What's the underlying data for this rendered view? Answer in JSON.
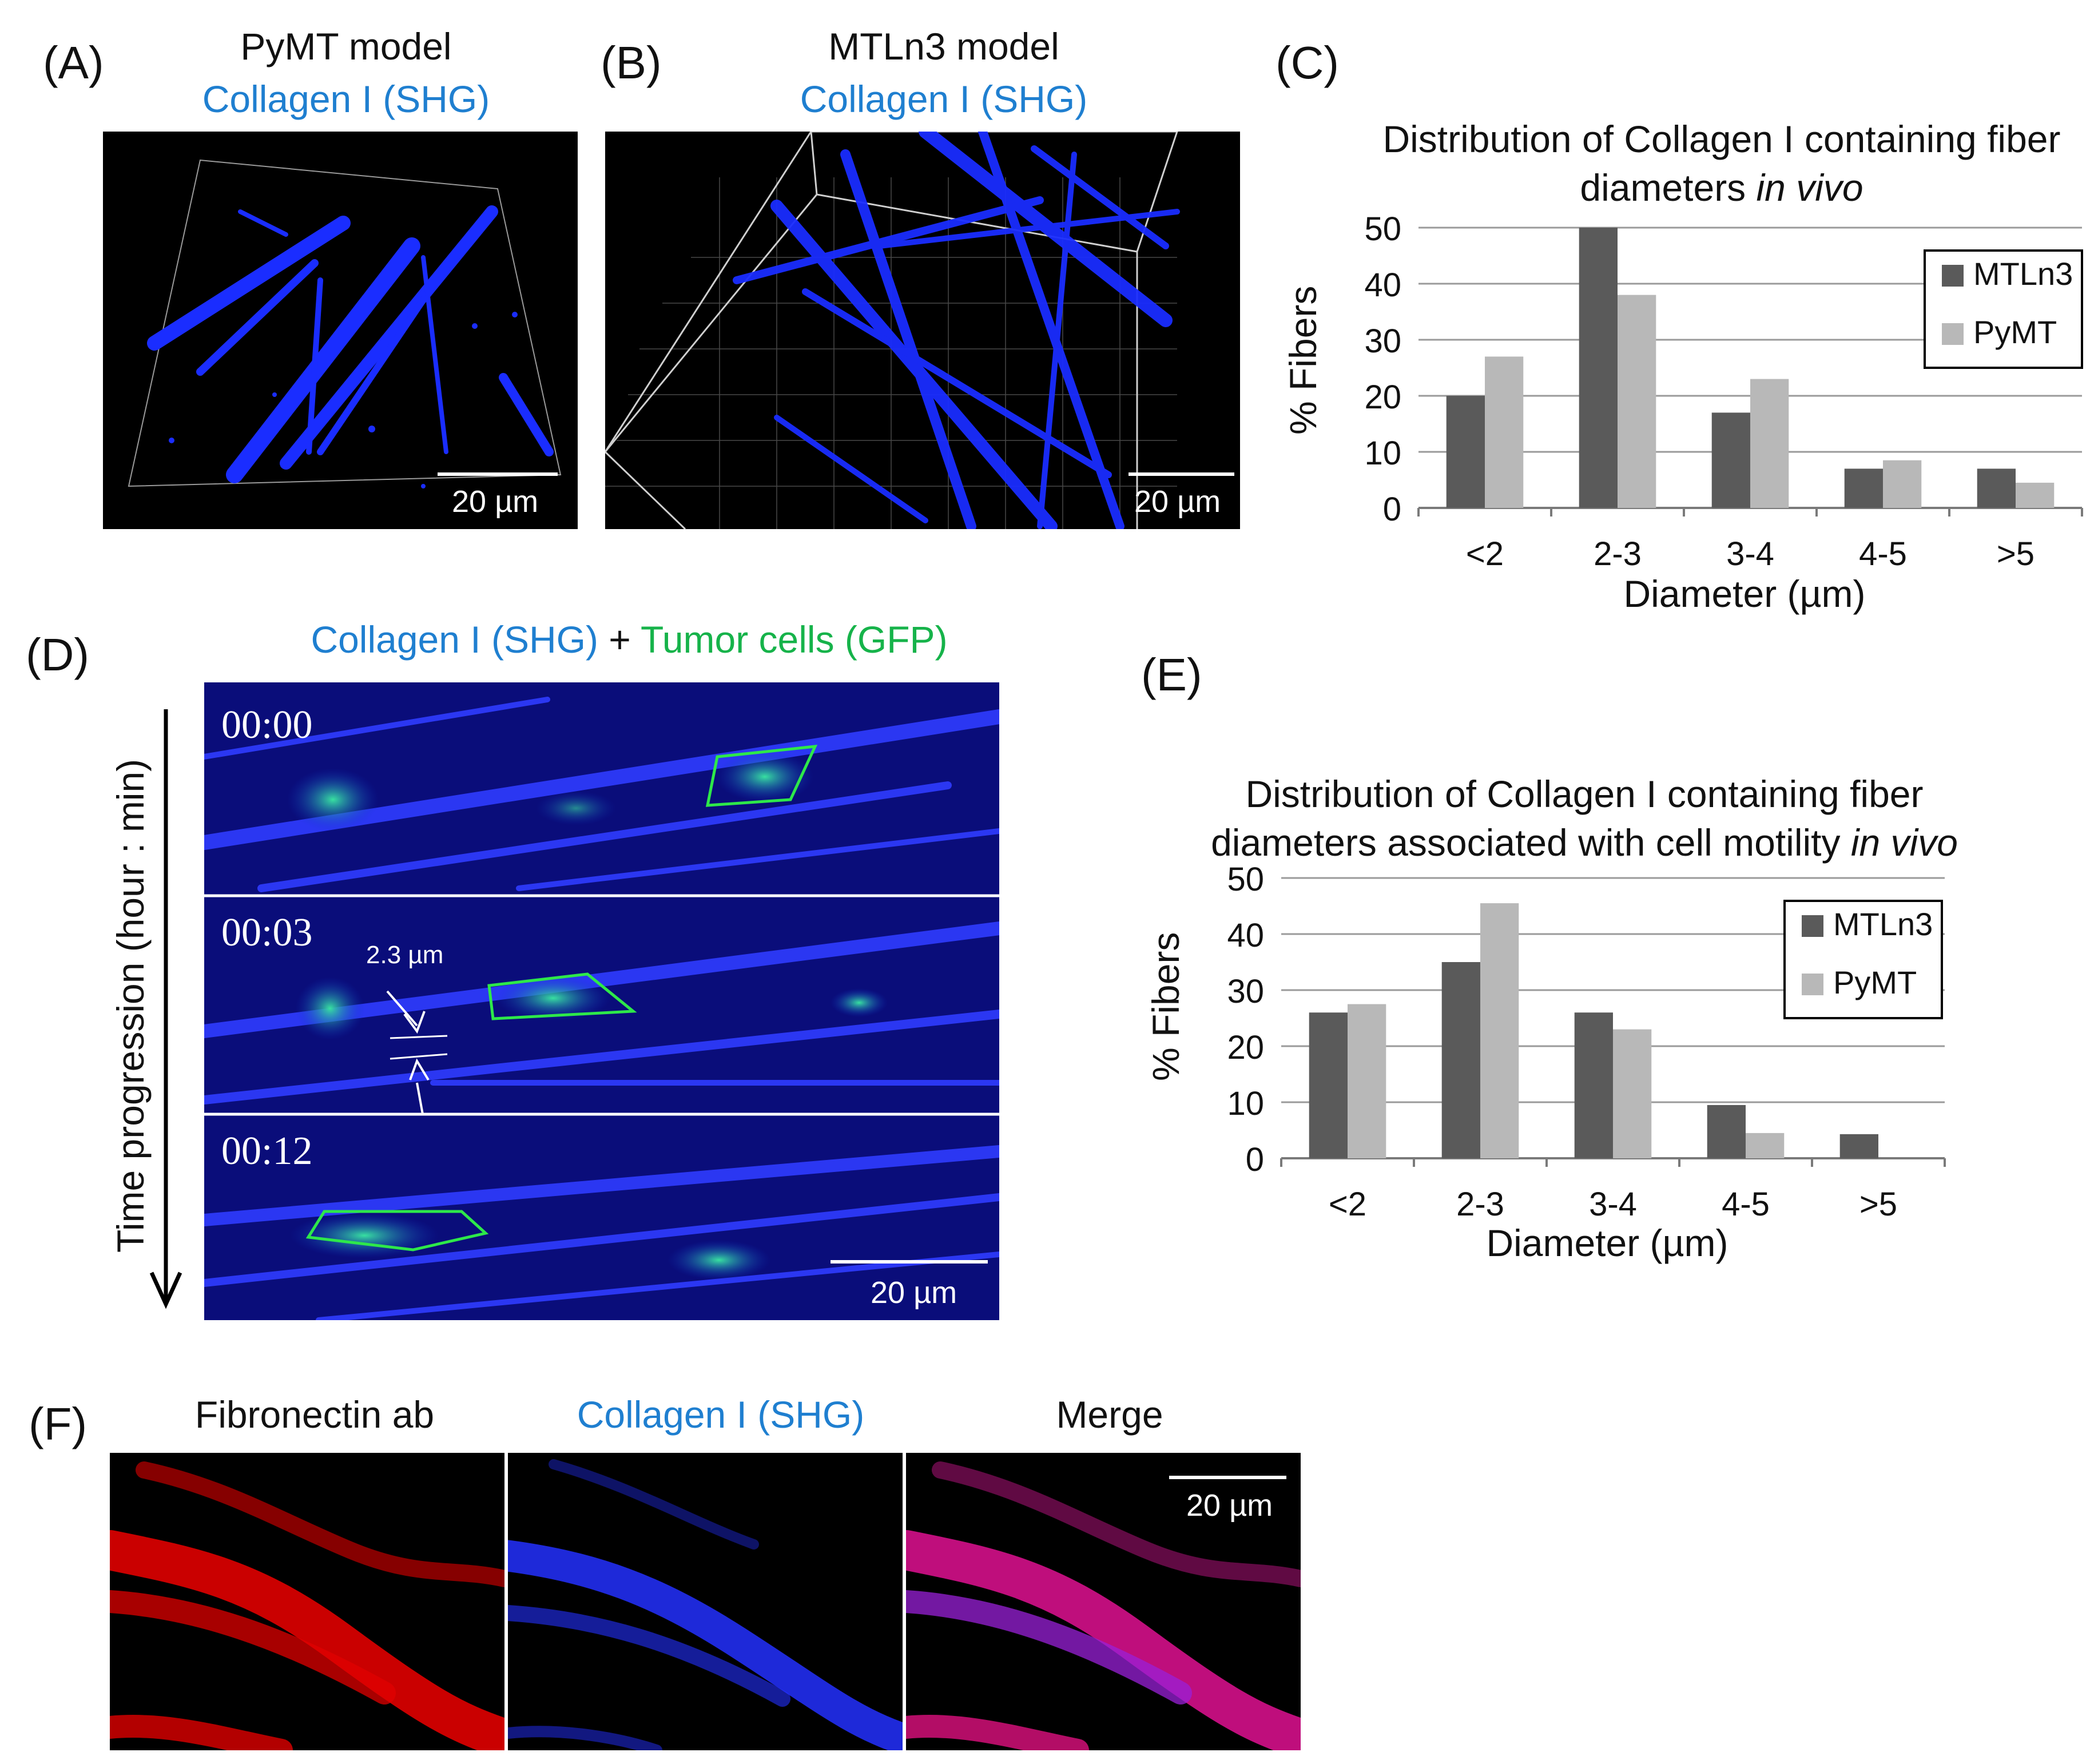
{
  "panels": {
    "A": {
      "label": "(A)",
      "title": "PyMT model",
      "subtitle": "Collagen I (SHG)",
      "scale": "20 µm"
    },
    "B": {
      "label": "(B)",
      "title": "MTLn3 model",
      "subtitle": "Collagen I (SHG)",
      "scale": "20 µm"
    },
    "C": {
      "label": "(C)"
    },
    "D": {
      "label": "(D)",
      "title_a": "Collagen I (SHG)",
      "title_plus": " + ",
      "title_b": "Tumor cells (GFP)",
      "axis": "Time progression (hour : min)",
      "frames": [
        "00:00",
        "00:03",
        "00:12"
      ],
      "measure": "2.3 µm",
      "scale": "20 µm"
    },
    "E": {
      "label": "(E)"
    },
    "F": {
      "label": "(F)",
      "titles": [
        "Fibronectin ab",
        "Collagen I (SHG)",
        "Merge"
      ],
      "scale": "20 µm"
    }
  },
  "colors": {
    "mtln3": "#5a5a5a",
    "pymt": "#b8b8b8",
    "shg_blue": "#1f7fd0",
    "gfp_green": "#16b34a"
  },
  "chart_data": [
    {
      "type": "bar",
      "title_line1": "Distribution of Collagen I containing fiber",
      "title_line2_plain": "diameters ",
      "title_line2_italic": "in vivo",
      "categories": [
        "<2",
        "2-3",
        "3-4",
        "4-5",
        ">5"
      ],
      "series": [
        {
          "name": "MTLn3",
          "values": [
            20,
            50,
            17,
            7,
            7
          ]
        },
        {
          "name": "PyMT",
          "values": [
            27,
            38,
            23,
            8.5,
            4.5
          ]
        }
      ],
      "xlabel": "Diameter (µm)",
      "ylabel": "% Fibers",
      "ylim": [
        0,
        50
      ],
      "yticks": [
        "0",
        "10",
        "20",
        "30",
        "40",
        "50"
      ],
      "grid": true,
      "legend": "right"
    },
    {
      "type": "bar",
      "title_line1": "Distribution of Collagen I containing fiber",
      "title_line2_plain": "diameters associated with cell motility ",
      "title_line2_italic": "in vivo",
      "categories": [
        "<2",
        "2-3",
        "3-4",
        "4-5",
        ">5"
      ],
      "series": [
        {
          "name": "MTLn3",
          "values": [
            26,
            35,
            26,
            9.5,
            4.3
          ]
        },
        {
          "name": "PyMT",
          "values": [
            27.5,
            45.5,
            23,
            4.5,
            0
          ]
        }
      ],
      "xlabel": "Diameter (µm)",
      "ylabel": "% Fibers",
      "ylim": [
        0,
        50
      ],
      "yticks": [
        "0",
        "10",
        "20",
        "30",
        "40",
        "50"
      ],
      "grid": true,
      "legend": "top-right"
    }
  ]
}
